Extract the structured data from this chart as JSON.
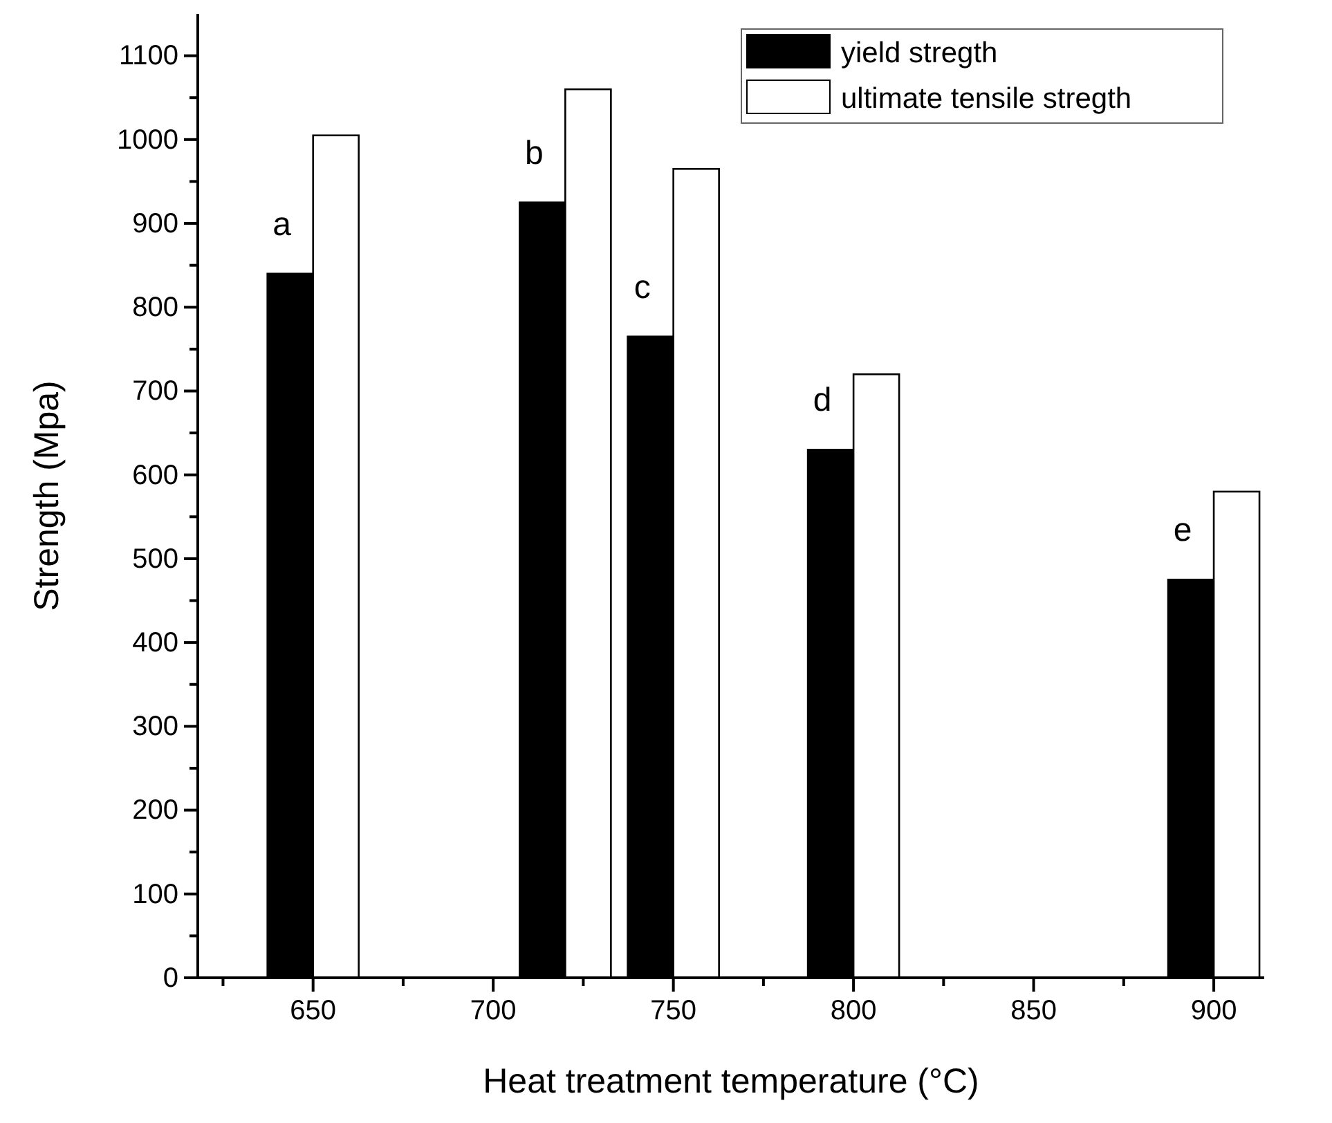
{
  "chart_data": {
    "type": "bar",
    "xlabel": "Heat treatment temperature (°C)",
    "ylabel": "Strength (Mpa)",
    "x": [
      650,
      720,
      750,
      800,
      900
    ],
    "series": [
      {
        "name": "yield stregth",
        "color": "#000000",
        "values": [
          840,
          925,
          765,
          630,
          475
        ]
      },
      {
        "name": "ultimate tensile stregth",
        "color": "#ffffff",
        "values": [
          1005,
          1060,
          965,
          720,
          580
        ]
      }
    ],
    "xlim": [
      618,
      914
    ],
    "xticks": [
      {
        "value": 625,
        "label": null
      },
      650,
      {
        "value": 675,
        "label": null
      },
      700,
      {
        "value": 725,
        "label": null
      },
      750,
      {
        "value": 775,
        "label": null
      },
      800,
      {
        "value": 825,
        "label": null
      },
      850,
      {
        "value": 875,
        "label": null
      },
      900
    ],
    "ylim": [
      0,
      1150
    ],
    "yticks": [
      0,
      {
        "value": 50,
        "label": null
      },
      100,
      {
        "value": 150,
        "label": null
      },
      200,
      {
        "value": 250,
        "label": null
      },
      300,
      {
        "value": 350,
        "label": null
      },
      400,
      {
        "value": 450,
        "label": null
      },
      500,
      {
        "value": 550,
        "label": null
      },
      600,
      {
        "value": 650,
        "label": null
      },
      700,
      {
        "value": 750,
        "label": null
      },
      800,
      {
        "value": 850,
        "label": null
      },
      900,
      {
        "value": 950,
        "label": null
      },
      1000,
      {
        "value": 1050,
        "label": null
      },
      1100
    ],
    "annotations": [
      "a",
      "b",
      "c",
      "d",
      "e"
    ],
    "legend": "top right",
    "grid": false
  }
}
